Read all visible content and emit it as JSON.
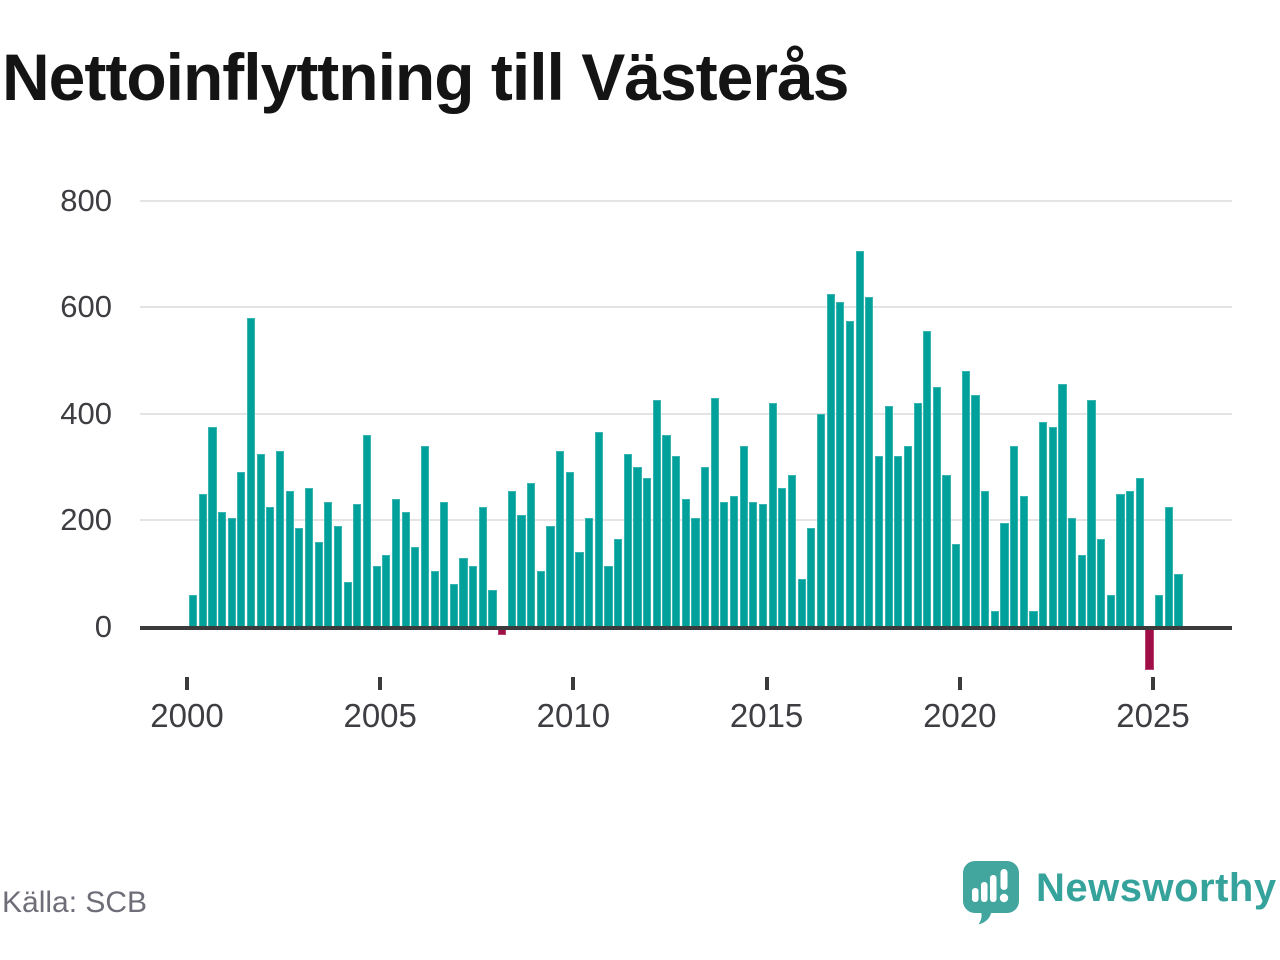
{
  "title": "Nettoinflyttning till Västerås",
  "source": "Källa: SCB",
  "branding": {
    "name": "Newsworthy",
    "logo_icon": "speech-bubble-bar-chart-icon"
  },
  "colors": {
    "bar_positive": "#00a19a",
    "bar_negative": "#a00e48",
    "axis": "#3b3b3b",
    "gridline": "#e4e4e4",
    "tick_label": "#3d3d42",
    "title_text": "#141414",
    "source_text": "#6e6e78",
    "brand_teal": "#35a39b",
    "logo_bubble": "#42a59e"
  },
  "chart_data": {
    "type": "bar",
    "title": "Nettoinflyttning till Västerås",
    "xlabel": "",
    "ylabel": "",
    "ylim": [
      -100,
      820
    ],
    "grid": "horizontal",
    "legend_position": "none",
    "y_ticks": [
      0,
      200,
      400,
      600,
      800
    ],
    "x_tick_labels": [
      "2000",
      "2005",
      "2010",
      "2015",
      "2020",
      "2025"
    ],
    "note": "quarterly net migration; negative quarters drawn in dark red",
    "x": [
      "2000Q1",
      "2000Q2",
      "2000Q3",
      "2000Q4",
      "2001Q1",
      "2001Q2",
      "2001Q3",
      "2001Q4",
      "2002Q1",
      "2002Q2",
      "2002Q3",
      "2002Q4",
      "2003Q1",
      "2003Q2",
      "2003Q3",
      "2003Q4",
      "2004Q1",
      "2004Q2",
      "2004Q3",
      "2004Q4",
      "2005Q1",
      "2005Q2",
      "2005Q3",
      "2005Q4",
      "2006Q1",
      "2006Q2",
      "2006Q3",
      "2006Q4",
      "2007Q1",
      "2007Q2",
      "2007Q3",
      "2007Q4",
      "2008Q1",
      "2008Q2",
      "2008Q3",
      "2008Q4",
      "2009Q1",
      "2009Q2",
      "2009Q3",
      "2009Q4",
      "2010Q1",
      "2010Q2",
      "2010Q3",
      "2010Q4",
      "2011Q1",
      "2011Q2",
      "2011Q3",
      "2011Q4",
      "2012Q1",
      "2012Q2",
      "2012Q3",
      "2012Q4",
      "2013Q1",
      "2013Q2",
      "2013Q3",
      "2013Q4",
      "2014Q1",
      "2014Q2",
      "2014Q3",
      "2014Q4",
      "2015Q1",
      "2015Q2",
      "2015Q3",
      "2015Q4",
      "2016Q1",
      "2016Q2",
      "2016Q3",
      "2016Q4",
      "2017Q1",
      "2017Q2",
      "2017Q3",
      "2017Q4",
      "2018Q1",
      "2018Q2",
      "2018Q3",
      "2018Q4",
      "2019Q1",
      "2019Q2",
      "2019Q3",
      "2019Q4",
      "2020Q1",
      "2020Q2",
      "2020Q3",
      "2020Q4",
      "2021Q1",
      "2021Q2",
      "2021Q3",
      "2021Q4",
      "2022Q1",
      "2022Q2",
      "2022Q3",
      "2022Q4",
      "2023Q1",
      "2023Q2",
      "2023Q3",
      "2023Q4",
      "2024Q1",
      "2024Q2",
      "2024Q3",
      "2024Q4",
      "2025Q1",
      "2025Q2",
      "2025Q3"
    ],
    "values": [
      60,
      250,
      375,
      215,
      205,
      290,
      580,
      325,
      225,
      330,
      255,
      185,
      260,
      160,
      235,
      190,
      85,
      230,
      360,
      115,
      135,
      240,
      215,
      150,
      340,
      105,
      235,
      80,
      130,
      115,
      225,
      70,
      -15,
      255,
      210,
      270,
      105,
      190,
      330,
      290,
      140,
      205,
      365,
      115,
      165,
      325,
      300,
      280,
      425,
      360,
      320,
      240,
      205,
      300,
      430,
      235,
      245,
      340,
      235,
      230,
      420,
      260,
      285,
      90,
      185,
      400,
      625,
      610,
      575,
      705,
      620,
      320,
      415,
      320,
      340,
      420,
      555,
      450,
      285,
      155,
      480,
      435,
      255,
      30,
      195,
      340,
      245,
      30,
      385,
      375,
      455,
      205,
      135,
      425,
      165,
      60,
      250,
      255,
      280,
      -80,
      60,
      225,
      100
    ]
  }
}
